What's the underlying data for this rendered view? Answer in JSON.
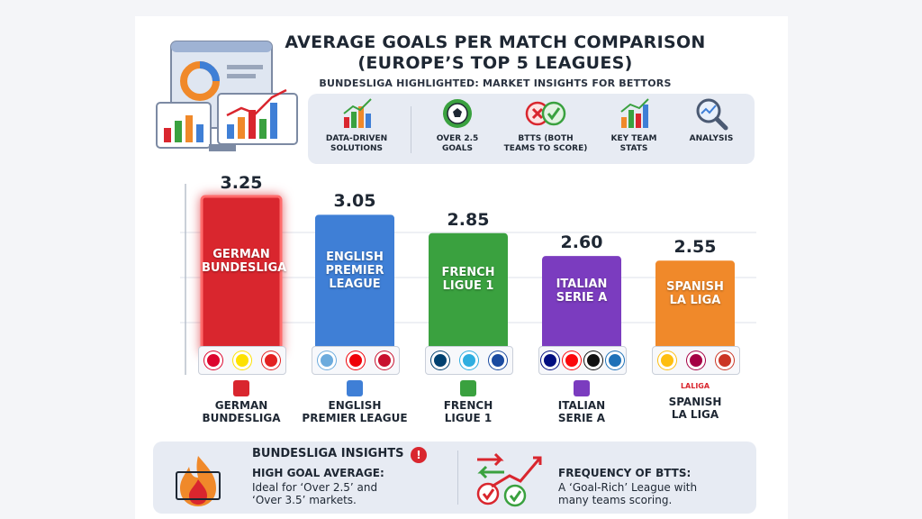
{
  "header": {
    "title_line1": "AVERAGE GOALS PER MATCH COMPARISON",
    "title_line2": "(EUROPE’S TOP 5 LEAGUES)",
    "subtitle": "BUNDESLIGA HIGHLIGHTED: MARKET INSIGHTS FOR BETTORS"
  },
  "features": [
    {
      "icon": "bar-chart-icon",
      "label_line1": "DATA-DRIVEN",
      "label_line2": "SOLUTIONS"
    },
    {
      "icon": "soccer-ball-icon",
      "label_line1": "OVER 2.5",
      "label_line2": "GOALS"
    },
    {
      "icon": "btts-icon",
      "label_line1": "BTTS (BOTH",
      "label_line2": "TEAMS TO SCORE)"
    },
    {
      "icon": "team-stats-icon",
      "label_line1": "KEY TEAM",
      "label_line2": "STATS"
    },
    {
      "icon": "analysis-icon",
      "label_line1": "ANALYSIS",
      "label_line2": ""
    }
  ],
  "chart_data": {
    "type": "bar",
    "categories": [
      "GERMAN BUNDESLIGA",
      "ENGLISH PREMIER LEAGUE",
      "FRENCH LIGUE 1",
      "ITALIAN SERIE A",
      "SPANISH LA LIGA"
    ],
    "values": [
      3.25,
      3.05,
      2.85,
      2.6,
      2.55
    ],
    "value_labels": [
      "3.25",
      "3.05",
      "2.85",
      "2.60",
      "2.55"
    ],
    "bar_labels": [
      [
        "GERMAN",
        "BUNDESLIGA"
      ],
      [
        "ENGLISH",
        "PREMIER",
        "LEAGUE"
      ],
      [
        "FRENCH",
        "LIGUE 1"
      ],
      [
        "ITALIAN",
        "SERIE A"
      ],
      [
        "SPANISH",
        "LA LIGA"
      ]
    ],
    "axis_labels": [
      [
        "GERMAN",
        "BUNDESLIGA"
      ],
      [
        "ENGLISH",
        "PREMIER LEAGUE"
      ],
      [
        "FRENCH",
        "LIGUE 1"
      ],
      [
        "ITALIAN",
        "SERIE A"
      ],
      [
        "SPANISH",
        "LA LIGA"
      ]
    ],
    "colors": [
      "#d9262e",
      "#3f7fd6",
      "#3aa13f",
      "#7b3cbf",
      "#f0892a"
    ],
    "highlighted": "GERMAN BUNDESLIGA",
    "grid": true,
    "legend": "none"
  },
  "club_crests": [
    [
      {
        "name": "bayern-crest",
        "color": "#dc052d"
      },
      {
        "name": "dortmund-crest",
        "color": "#fde100"
      },
      {
        "name": "leverkusen-crest",
        "color": "#e32221"
      }
    ],
    [
      {
        "name": "man-city-crest",
        "color": "#6cabdd"
      },
      {
        "name": "arsenal-crest",
        "color": "#ef0107"
      },
      {
        "name": "liverpool-crest",
        "color": "#c8102e"
      }
    ],
    [
      {
        "name": "psg-crest",
        "color": "#004170"
      },
      {
        "name": "marseille-crest",
        "color": "#2faee0"
      },
      {
        "name": "lyon-crest",
        "color": "#1a4aa0"
      }
    ],
    [
      {
        "name": "inter-crest",
        "color": "#010e80"
      },
      {
        "name": "milan-crest",
        "color": "#fb090b"
      },
      {
        "name": "juventus-crest",
        "color": "#111111"
      },
      {
        "name": "atalanta-crest",
        "color": "#1e71b8"
      }
    ],
    [
      {
        "name": "real-madrid-crest",
        "color": "#febe10"
      },
      {
        "name": "barcelona-crest",
        "color": "#a50044"
      },
      {
        "name": "atletico-crest",
        "color": "#cb3524"
      }
    ]
  ],
  "league_marks": [
    "LALIGA"
  ],
  "insights": {
    "heading": "BUNDESLIGA INSIGHTS",
    "alert_glyph": "!",
    "left_title": "HIGH GOAL AVERAGE:",
    "left_text_line1": "Ideal for ‘Over 2.5’ and",
    "left_text_line2": "‘Over 3.5’ markets.",
    "right_title": "FREQUENCY OF BTTS:",
    "right_text_line1": "A ‘Goal-Rich’ League with",
    "right_text_line2": "many teams scoring."
  }
}
